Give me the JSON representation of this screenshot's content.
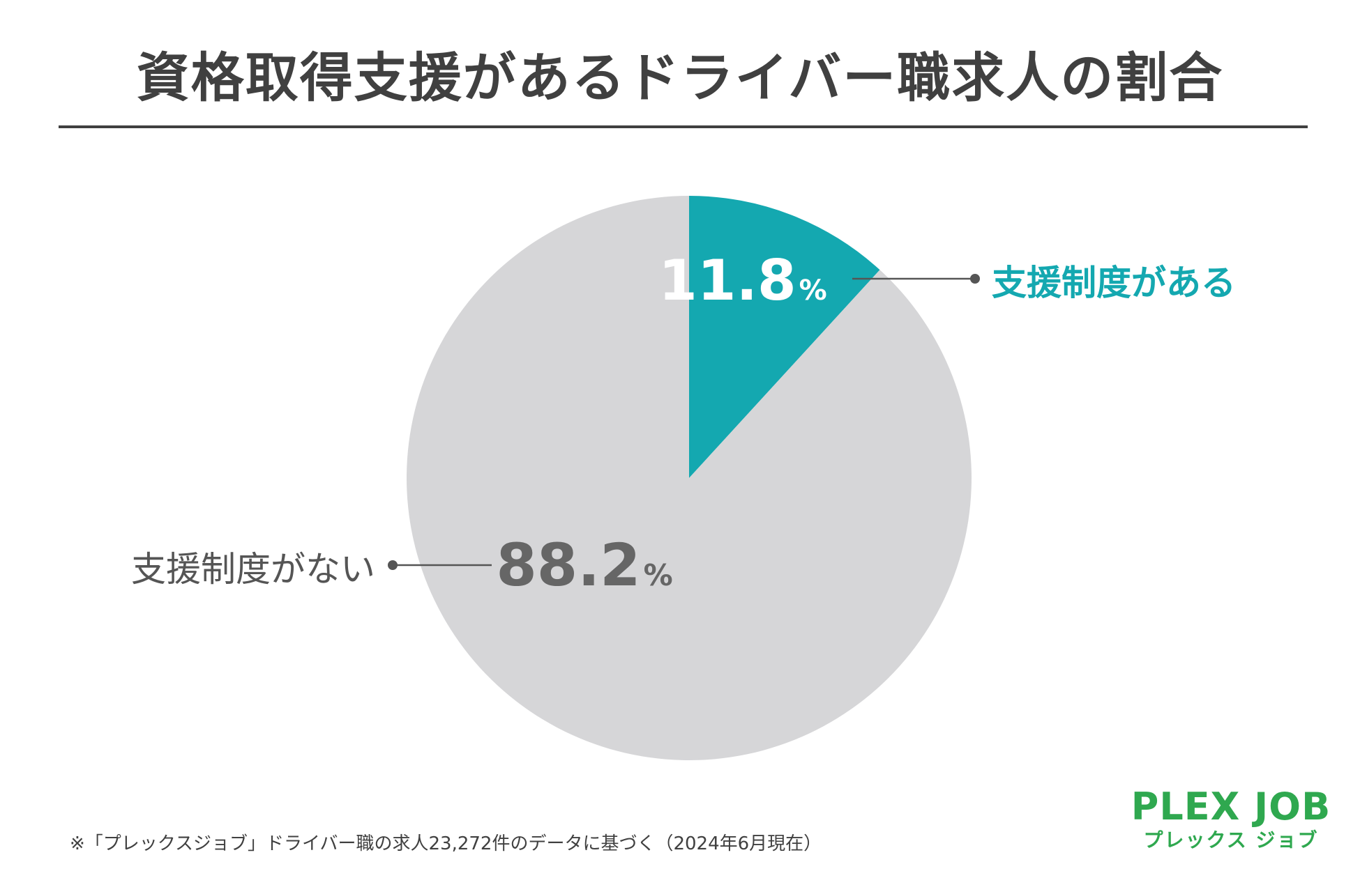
{
  "title": "資格取得支援があるドライバー職求人の割合",
  "footnote": "※「プレックスジョブ」ドライバー職の求人23,272件のデータに基づく（2024年6月現在）",
  "logo": {
    "main": "PLEX JOB",
    "sub": "プレックス ジョブ"
  },
  "chart_data": {
    "type": "pie",
    "slices": [
      {
        "label": "支援制度がある",
        "value": 11.8,
        "display": "11.8",
        "unit": "%",
        "color": "#14a8b0",
        "label_color": "#14a8b0",
        "value_color": "#ffffff"
      },
      {
        "label": "支援制度がない",
        "value": 88.2,
        "display": "88.2",
        "unit": "%",
        "color": "#d6d6d8",
        "label_color": "#555555",
        "value_color": "#666666"
      }
    ],
    "start_angle_deg": 0,
    "direction": "clockwise"
  }
}
